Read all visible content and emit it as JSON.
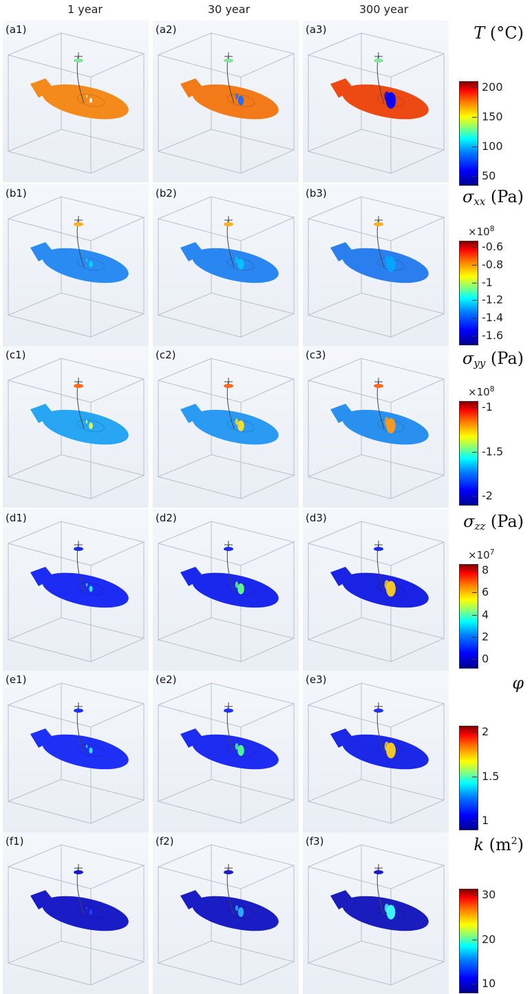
{
  "columns": [
    "1 year",
    "30 year",
    "300 year"
  ],
  "rows": [
    {
      "panels": [
        "(a1)",
        "(a2)",
        "(a3)"
      ],
      "quantity": {
        "symbol": "T",
        "subscript": "",
        "superscript": "",
        "unit": " (°C)"
      },
      "multiplier": "",
      "ticks": [
        "200",
        "150",
        "100",
        "50"
      ],
      "fill_colors": [
        "#f48a1c",
        "#f27a18",
        "#ec4a12"
      ],
      "hotspot_colors": [
        "#ffffff",
        "#1b6cff",
        "#0000ff"
      ],
      "hotspot_levels": [
        0.05,
        0.45,
        1.0
      ],
      "disk_small_color": "#88e2a0"
    },
    {
      "panels": [
        "(b1)",
        "(b2)",
        "(b3)"
      ],
      "quantity": {
        "symbol": "σ",
        "subscript": "xx",
        "superscript": "",
        "unit": " (Pa)"
      },
      "multiplier": "8",
      "ticks": [
        "-0.6",
        "-0.8",
        "-1",
        "-1.2",
        "-1.4",
        "-1.6"
      ],
      "fill_colors": [
        "#2a8cf2",
        "#2a86f0",
        "#2a7eee"
      ],
      "hotspot_colors": [
        "#00d8ff",
        "#00c6ff",
        "#00a8ff"
      ],
      "hotspot_levels": [
        0.2,
        0.55,
        0.9
      ],
      "disk_small_color": "#ffb020"
    },
    {
      "panels": [
        "(c1)",
        "(c2)",
        "(c3)"
      ],
      "quantity": {
        "symbol": "σ",
        "subscript": "yy",
        "superscript": "",
        "unit": " (Pa)"
      },
      "multiplier": "8",
      "ticks": [
        "-1",
        "-1.5",
        "-2"
      ],
      "fill_colors": [
        "#28a6f4",
        "#2a9af2",
        "#2a90f0"
      ],
      "hotspot_colors": [
        "#e0ff40",
        "#ffe020",
        "#ff9a18"
      ],
      "hotspot_levels": [
        0.2,
        0.55,
        0.9
      ],
      "disk_small_color": "#ff6a1a"
    },
    {
      "panels": [
        "(d1)",
        "(d2)",
        "(d3)"
      ],
      "quantity": {
        "symbol": "σ",
        "subscript": "zz",
        "superscript": "",
        "unit": " (Pa)"
      },
      "multiplier": "7",
      "ticks": [
        "8",
        "6",
        "4",
        "2",
        "0"
      ],
      "fill_colors": [
        "#1c2cf4",
        "#1a28ee",
        "#1a22e4"
      ],
      "hotspot_colors": [
        "#2af0ff",
        "#60ff80",
        "#ffd020"
      ],
      "hotspot_levels": [
        0.15,
        0.55,
        0.95
      ],
      "disk_small_color": "#1c2cf4"
    },
    {
      "panels": [
        "(e1)",
        "(e2)",
        "(e3)"
      ],
      "quantity": {
        "symbol": "φ",
        "subscript": "",
        "superscript": "",
        "unit": ""
      },
      "multiplier": "",
      "ticks": [
        "2",
        "1.5",
        "1"
      ],
      "fill_colors": [
        "#1f30f6",
        "#1d2cf0",
        "#1c28e8"
      ],
      "hotspot_colors": [
        "#30e8ff",
        "#50ff90",
        "#ffd020"
      ],
      "hotspot_levels": [
        0.15,
        0.55,
        0.95
      ],
      "disk_small_color": "#1f30f6"
    },
    {
      "panels": [
        "(f1)",
        "(f2)",
        "(f3)"
      ],
      "quantity": {
        "symbol": "k",
        "subscript": "",
        "superscript": "2",
        "unit": " (m"
      },
      "multiplier": "",
      "ticks": [
        "30",
        "20",
        "10"
      ],
      "fill_colors": [
        "#1a1cc8",
        "#1a1cc4",
        "#1a1cbe"
      ],
      "hotspot_colors": [
        "#2040ff",
        "#30b0ff",
        "#40ffff"
      ],
      "hotspot_levels": [
        0.1,
        0.45,
        0.85
      ],
      "disk_small_color": "#1a1cc8"
    }
  ]
}
